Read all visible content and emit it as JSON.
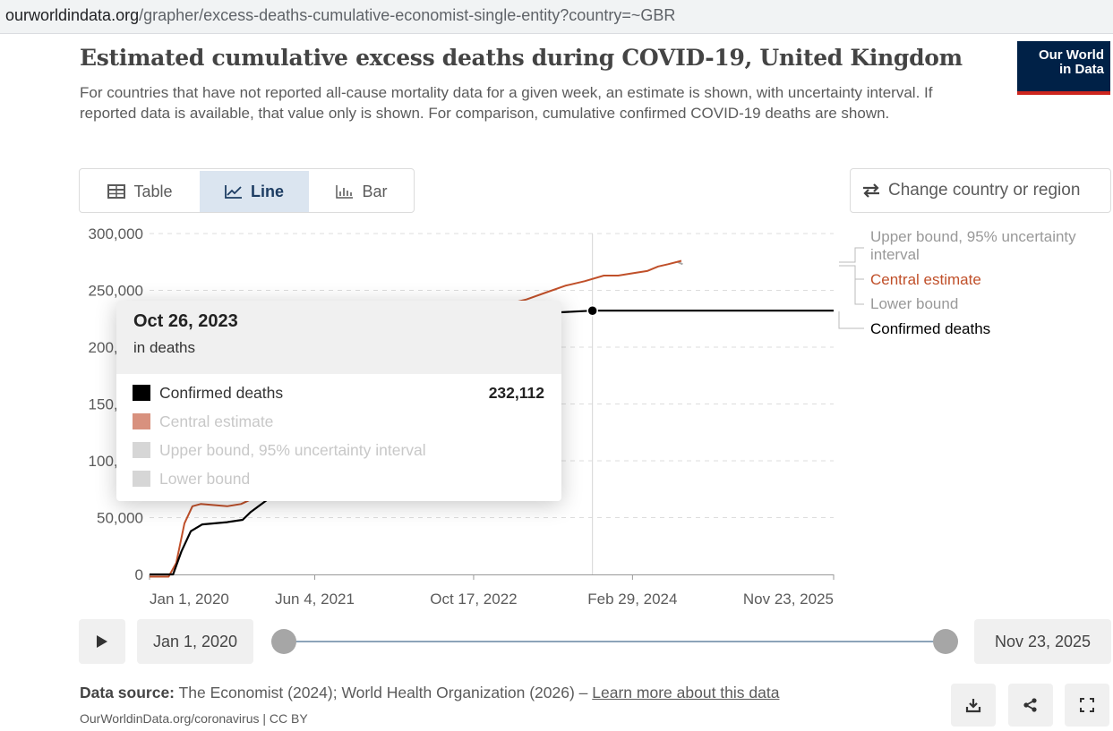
{
  "browser": {
    "url_host": "ourworldindata.org",
    "url_path": "/grapher/excess-deaths-cumulative-economist-single-entity?country=~GBR"
  },
  "header": {
    "title": "Estimated cumulative excess deaths during COVID-19, United Kingdom",
    "subtitle": "For countries that have not reported all-cause mortality data for a given week, an estimate is shown, with uncertainty interval. If reported data is available, that value only is shown. For comparison, cumulative confirmed COVID-19 deaths are shown.",
    "logo_line1": "Our World",
    "logo_line2": "in Data"
  },
  "tabs": [
    {
      "label": "Table",
      "icon": "table-icon",
      "active": false
    },
    {
      "label": "Line",
      "icon": "line-chart-icon",
      "active": true
    },
    {
      "label": "Bar",
      "icon": "bar-chart-icon",
      "active": false
    }
  ],
  "change_country_label": "Change country or region",
  "chart_data": {
    "type": "line",
    "title": "Estimated cumulative excess deaths during COVID-19, United Kingdom",
    "xlabel": "",
    "ylabel": "",
    "ylim": [
      0,
      300000
    ],
    "xlim": [
      "2020-01-01",
      "2025-11-23"
    ],
    "y_ticks": [
      0,
      50000,
      100000,
      150000,
      200000,
      250000,
      300000
    ],
    "y_tick_labels": [
      "0",
      "50,000",
      "100,000",
      "150,000",
      "200,000",
      "250,000",
      "300,000"
    ],
    "x_ticks": [
      "2020-01-01",
      "2021-06-04",
      "2022-10-17",
      "2024-02-29",
      "2025-11-23"
    ],
    "x_tick_labels": [
      "Jan 1, 2020",
      "Jun 4, 2021",
      "Oct 17, 2022",
      "Feb 29, 2024",
      "Nov 23, 2025"
    ],
    "grid": "horizontal dashed",
    "legend": "right",
    "hover_date": "2023-10-26",
    "series": [
      {
        "name": "Upper bound, 95% uncertainty interval",
        "color": "#a9a9a9",
        "points": [
          [
            "2024-07-20",
            275000
          ],
          [
            "2024-08-05",
            273000
          ]
        ]
      },
      {
        "name": "Central estimate",
        "color": "#c0502a",
        "points": [
          [
            "2020-01-01",
            -2000
          ],
          [
            "2020-03-01",
            -2000
          ],
          [
            "2020-03-25",
            10000
          ],
          [
            "2020-04-20",
            45000
          ],
          [
            "2020-05-15",
            60000
          ],
          [
            "2020-06-10",
            62000
          ],
          [
            "2020-09-01",
            60000
          ],
          [
            "2020-10-15",
            62000
          ],
          [
            "2020-11-15",
            66000
          ],
          [
            "2023-02-01",
            238000
          ],
          [
            "2023-04-01",
            242000
          ],
          [
            "2023-06-01",
            248000
          ],
          [
            "2023-08-01",
            254000
          ],
          [
            "2023-10-01",
            258000
          ],
          [
            "2023-12-01",
            263000
          ],
          [
            "2024-01-15",
            263000
          ],
          [
            "2024-03-01",
            265000
          ],
          [
            "2024-04-15",
            267000
          ],
          [
            "2024-05-20",
            271000
          ],
          [
            "2024-06-20",
            273000
          ],
          [
            "2024-08-01",
            276000
          ]
        ]
      },
      {
        "name": "Lower bound",
        "color": "#a9a9a9",
        "points": []
      },
      {
        "name": "Confirmed deaths",
        "color": "#000000",
        "points": [
          [
            "2020-01-01",
            0
          ],
          [
            "2020-03-15",
            0
          ],
          [
            "2020-04-10",
            20000
          ],
          [
            "2020-05-10",
            38000
          ],
          [
            "2020-06-15",
            44000
          ],
          [
            "2020-09-01",
            46000
          ],
          [
            "2020-10-20",
            48000
          ],
          [
            "2020-11-15",
            55000
          ],
          [
            "2023-03-01",
            228000
          ],
          [
            "2023-06-01",
            230000
          ],
          [
            "2023-10-26",
            232112
          ],
          [
            "2025-11-23",
            232112
          ]
        ]
      }
    ],
    "markers": [
      {
        "series": "Confirmed deaths",
        "x": "2023-10-26",
        "y": 232112
      }
    ]
  },
  "legend": [
    {
      "label": "Upper bound, 95% uncertainty interval",
      "color": "#999999"
    },
    {
      "label": "Central estimate",
      "color": "#c0502a"
    },
    {
      "label": "Lower bound",
      "color": "#999999"
    },
    {
      "label": "Confirmed deaths",
      "color": "#000000"
    }
  ],
  "tooltip": {
    "date": "Oct 26, 2023",
    "unit": "in deaths",
    "rows": [
      {
        "label": "Confirmed deaths",
        "value": "232,112",
        "color": "#000000",
        "text_color": "#333333"
      },
      {
        "label": "Central estimate",
        "value": "",
        "color": "#d8917e",
        "text_color": "#c8c8c8"
      },
      {
        "label": "Upper bound, 95% uncertainty interval",
        "value": "",
        "color": "#d6d6d6",
        "text_color": "#c8c8c8"
      },
      {
        "label": "Lower bound",
        "value": "",
        "color": "#d6d6d6",
        "text_color": "#c8c8c8"
      }
    ]
  },
  "timeline": {
    "start_label": "Jan 1, 2020",
    "end_label": "Nov 23, 2025"
  },
  "footer": {
    "source_prefix": "Data source:",
    "source_text": " The Economist (2024); World Health Organization (2026) – ",
    "learn_more": "Learn more about this data",
    "license": "OurWorldinData.org/coronavirus | CC BY"
  },
  "icons": {
    "play": "play-icon",
    "download": "download-icon",
    "share": "share-icon",
    "fullscreen": "fullscreen-icon"
  }
}
